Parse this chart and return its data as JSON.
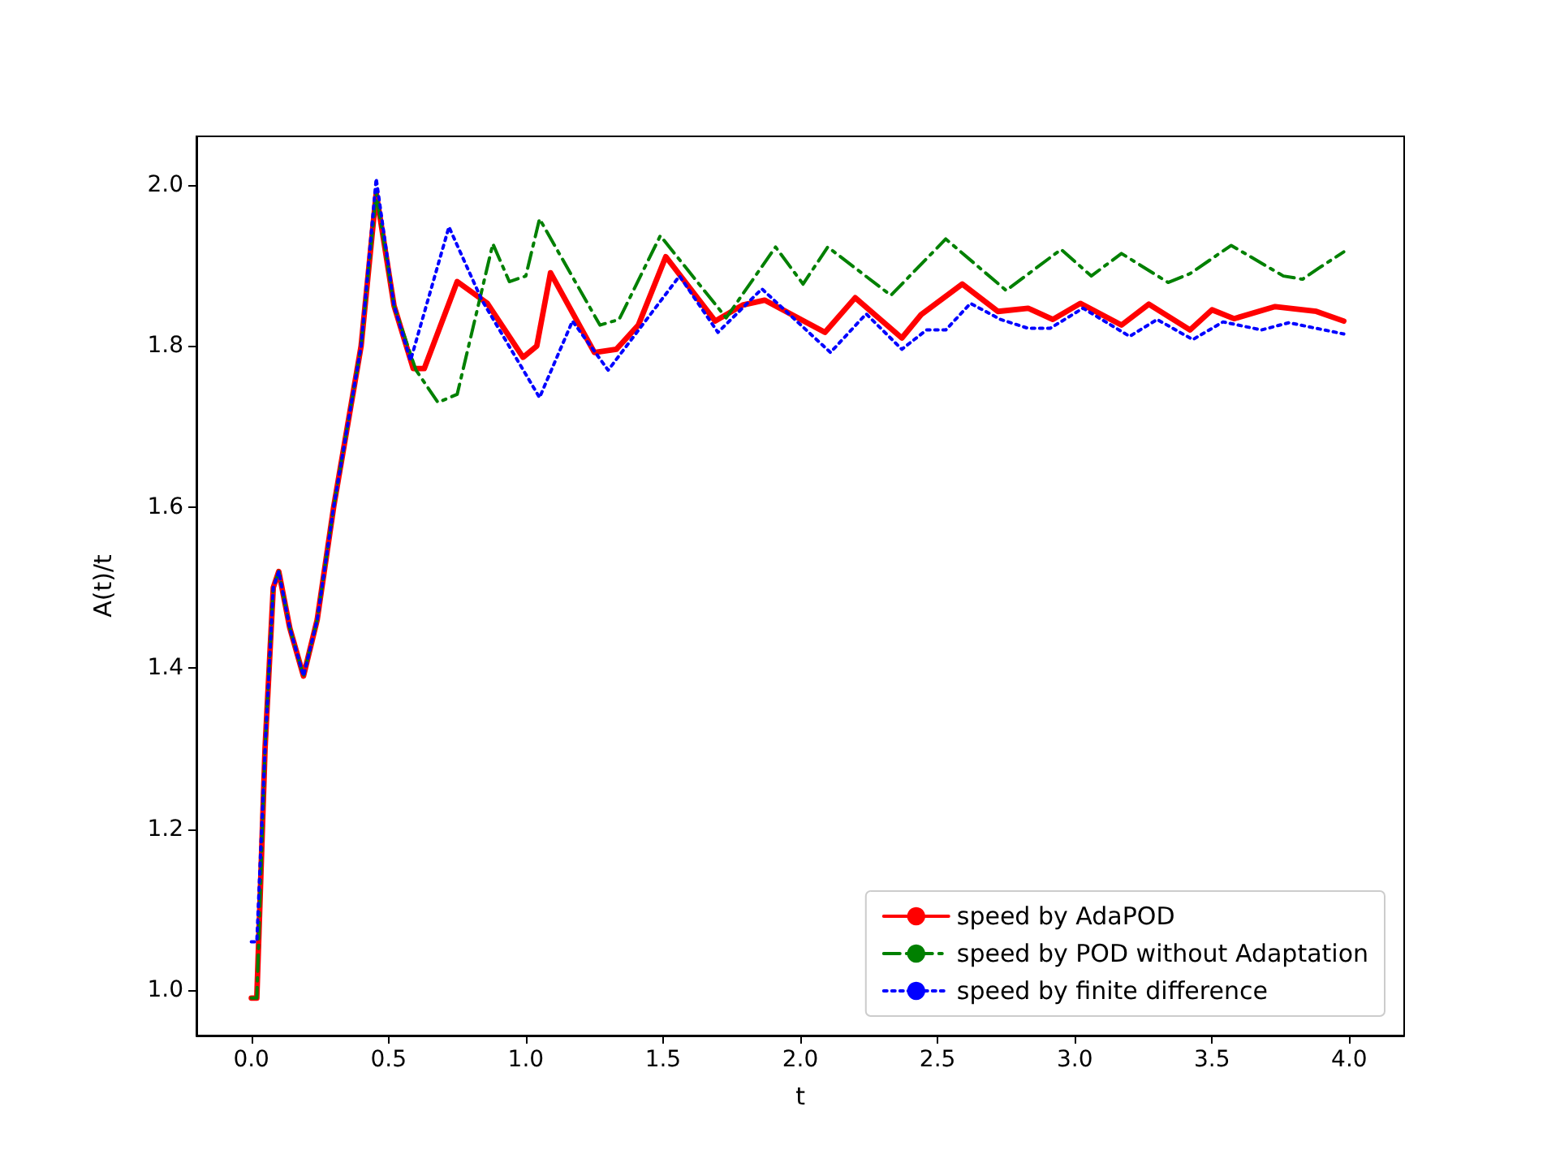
{
  "chart_data": {
    "type": "line",
    "xlabel": "t",
    "ylabel": "A(t)/t",
    "xlim": [
      -0.2,
      4.2
    ],
    "ylim": [
      0.9435,
      2.0605
    ],
    "xticks": [
      {
        "value": 0,
        "label": "0.0"
      },
      {
        "value": 0.5,
        "label": "0.5"
      },
      {
        "value": 1,
        "label": "1.0"
      },
      {
        "value": 1.5,
        "label": "1.5"
      },
      {
        "value": 2,
        "label": "2.0"
      },
      {
        "value": 2.5,
        "label": "2.5"
      },
      {
        "value": 3,
        "label": "3.0"
      },
      {
        "value": 3.5,
        "label": "3.5"
      },
      {
        "value": 4,
        "label": "4.0"
      }
    ],
    "yticks": [
      {
        "value": 1,
        "label": "1.0"
      },
      {
        "value": 1.2,
        "label": "1.2"
      },
      {
        "value": 1.4,
        "label": "1.4"
      },
      {
        "value": 1.6,
        "label": "1.6"
      },
      {
        "value": 1.8,
        "label": "1.8"
      },
      {
        "value": 2,
        "label": "2.0"
      }
    ],
    "grid": false,
    "legend": "bottom right",
    "marker": "none",
    "series": [
      {
        "name": "speed by AdaPOD",
        "color": "#ff0000",
        "line_style": "solid",
        "x": [
          0,
          0.02,
          0.05,
          0.08,
          0.1,
          0.14,
          0.19,
          0.24,
          0.3,
          0.4,
          0.455,
          0.52,
          0.59,
          0.63,
          0.75,
          0.86,
          0.99,
          1.04,
          1.09,
          1.25,
          1.33,
          1.41,
          1.51,
          1.69,
          1.79,
          1.87,
          2.04,
          2.09,
          2.2,
          2.37,
          2.44,
          2.59,
          2.72,
          2.83,
          2.92,
          3.02,
          3.17,
          3.27,
          3.42,
          3.5,
          3.58,
          3.73,
          3.88,
          3.98
        ],
        "values": [
          0.99,
          0.99,
          1.3,
          1.5,
          1.52,
          1.45,
          1.39,
          1.46,
          1.6,
          1.8,
          1.99,
          1.85,
          1.772,
          1.772,
          1.88,
          1.853,
          1.786,
          1.8,
          1.891,
          1.792,
          1.796,
          1.826,
          1.911,
          1.831,
          1.851,
          1.857,
          1.826,
          1.817,
          1.86,
          1.81,
          1.839,
          1.877,
          1.843,
          1.847,
          1.833,
          1.853,
          1.826,
          1.852,
          1.82,
          1.845,
          1.834,
          1.849,
          1.843,
          1.831
        ]
      },
      {
        "name": "speed by POD without Adaptation",
        "color": "#008000",
        "line_style": "dashdot",
        "x": [
          0,
          0.02,
          0.05,
          0.08,
          0.1,
          0.14,
          0.19,
          0.24,
          0.3,
          0.4,
          0.455,
          0.52,
          0.6,
          0.68,
          0.75,
          0.88,
          0.94,
          1.0,
          1.05,
          1.27,
          1.34,
          1.49,
          1.73,
          1.91,
          2.01,
          2.1,
          2.33,
          2.53,
          2.75,
          2.95,
          3.06,
          3.17,
          3.34,
          3.42,
          3.57,
          3.76,
          3.83,
          3.89,
          3.98
        ],
        "values": [
          0.99,
          0.99,
          1.3,
          1.5,
          1.52,
          1.45,
          1.39,
          1.46,
          1.6,
          1.8,
          1.99,
          1.85,
          1.77,
          1.73,
          1.74,
          1.927,
          1.88,
          1.887,
          1.958,
          1.826,
          1.833,
          1.937,
          1.835,
          1.923,
          1.877,
          1.923,
          1.863,
          1.933,
          1.869,
          1.92,
          1.887,
          1.915,
          1.879,
          1.89,
          1.925,
          1.887,
          1.883,
          1.897,
          1.917
        ]
      },
      {
        "name": "speed by finite difference",
        "color": "#0000ff",
        "line_style": "dotted",
        "x": [
          0,
          0.02,
          0.05,
          0.08,
          0.1,
          0.14,
          0.19,
          0.24,
          0.3,
          0.4,
          0.455,
          0.52,
          0.58,
          0.72,
          0.84,
          1.05,
          1.17,
          1.3,
          1.56,
          1.7,
          1.86,
          2.11,
          2.24,
          2.37,
          2.46,
          2.53,
          2.62,
          2.73,
          2.83,
          2.91,
          3.03,
          3.2,
          3.3,
          3.43,
          3.54,
          3.68,
          3.78,
          3.98
        ],
        "values": [
          1.06,
          1.06,
          1.3,
          1.5,
          1.52,
          1.45,
          1.39,
          1.46,
          1.6,
          1.8,
          2.008,
          1.85,
          1.782,
          1.948,
          1.857,
          1.736,
          1.831,
          1.77,
          1.887,
          1.817,
          1.871,
          1.792,
          1.84,
          1.796,
          1.82,
          1.82,
          1.853,
          1.833,
          1.822,
          1.822,
          1.847,
          1.812,
          1.833,
          1.808,
          1.83,
          1.82,
          1.829,
          1.815
        ]
      }
    ]
  }
}
